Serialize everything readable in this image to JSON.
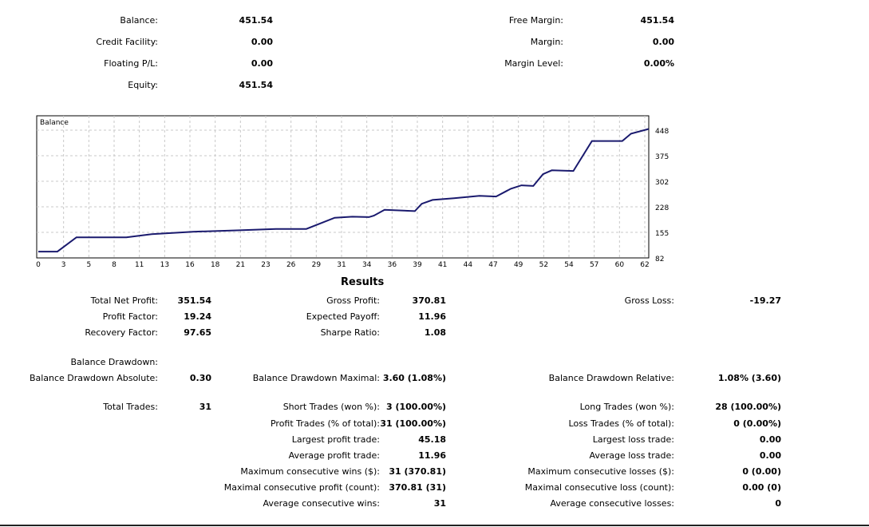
{
  "account": {
    "balance": {
      "label": "Balance:",
      "value": "451.54"
    },
    "credit_facility": {
      "label": "Credit Facility:",
      "value": "0.00"
    },
    "floating_pl": {
      "label": "Floating P/L:",
      "value": "0.00"
    },
    "equity": {
      "label": "Equity:",
      "value": "451.54"
    },
    "free_margin": {
      "label": "Free Margin:",
      "value": "451.54"
    },
    "margin": {
      "label": "Margin:",
      "value": "0.00"
    },
    "margin_level": {
      "label": "Margin Level:",
      "value": "0.00%"
    }
  },
  "chart_data": {
    "type": "line",
    "title": "Balance",
    "line_color": "#1a1a6e",
    "grid": true,
    "x_ticks": [
      "0",
      "3",
      "5",
      "8",
      "11",
      "13",
      "16",
      "18",
      "21",
      "23",
      "26",
      "29",
      "31",
      "34",
      "36",
      "39",
      "41",
      "44",
      "47",
      "49",
      "52",
      "54",
      "57",
      "60",
      "62"
    ],
    "y_ticks": [
      "82",
      "155",
      "228",
      "302",
      "375",
      "448"
    ],
    "ylim": [
      82,
      484
    ],
    "xlim": [
      0,
      63
    ],
    "series": [
      {
        "x": [
          0,
          1.95,
          3.9,
          9.0,
          11.6,
          15.8,
          20.3,
          24.3,
          27.4,
          30.3,
          32.1,
          33.8,
          34.3,
          35.4,
          38.5,
          39.2,
          40.3,
          42.5,
          45.1,
          46.8,
          48.3,
          49.4,
          50.6,
          51.6,
          52.5,
          54.7,
          56.6,
          59.7,
          60.6,
          62.4
        ],
        "y": [
          100,
          100,
          141,
          141,
          150,
          157,
          161,
          165,
          165,
          197,
          200,
          199,
          203,
          220,
          216,
          237,
          248,
          253,
          260,
          258,
          280,
          290,
          288,
          322,
          333,
          331,
          417,
          417,
          438,
          451.54
        ]
      }
    ]
  },
  "results": {
    "title": "Results",
    "total_net_profit": {
      "label": "Total Net Profit:",
      "value": "351.54"
    },
    "profit_factor": {
      "label": "Profit Factor:",
      "value": "19.24"
    },
    "recovery_factor": {
      "label": "Recovery Factor:",
      "value": "97.65"
    },
    "gross_profit": {
      "label": "Gross Profit:",
      "value": "370.81"
    },
    "expected_payoff": {
      "label": "Expected Payoff:",
      "value": "11.96"
    },
    "sharpe_ratio": {
      "label": "Sharpe Ratio:",
      "value": "1.08"
    },
    "gross_loss": {
      "label": "Gross Loss:",
      "value": "-19.27"
    },
    "balance_drawdown": {
      "label": "Balance Drawdown:"
    },
    "bd_absolute": {
      "label": "Balance Drawdown Absolute:",
      "value": "0.30"
    },
    "bd_maximal": {
      "label": "Balance Drawdown Maximal:",
      "value": "3.60 (1.08%)"
    },
    "bd_relative": {
      "label": "Balance Drawdown Relative:",
      "value": "1.08% (3.60)"
    },
    "total_trades": {
      "label": "Total Trades:",
      "value": "31"
    },
    "short_trades": {
      "label": "Short Trades (won %):",
      "value": "3 (100.00%)"
    },
    "long_trades": {
      "label": "Long Trades (won %):",
      "value": "28 (100.00%)"
    },
    "profit_trades": {
      "label": "Profit Trades (% of total):",
      "value": "31 (100.00%)"
    },
    "loss_trades": {
      "label": "Loss Trades (% of total):",
      "value": "0 (0.00%)"
    },
    "largest_profit": {
      "label": "Largest profit trade:",
      "value": "45.18"
    },
    "largest_loss": {
      "label": "Largest loss trade:",
      "value": "0.00"
    },
    "average_profit": {
      "label": "Average profit trade:",
      "value": "11.96"
    },
    "average_loss": {
      "label": "Average loss trade:",
      "value": "0.00"
    },
    "max_consec_wins": {
      "label": "Maximum consecutive wins ($):",
      "value": "31 (370.81)"
    },
    "max_consec_losses": {
      "label": "Maximum consecutive losses ($):",
      "value": "0 (0.00)"
    },
    "maximal_consec_profit": {
      "label": "Maximal consecutive profit (count):",
      "value": "370.81 (31)"
    },
    "maximal_consec_loss": {
      "label": "Maximal consecutive loss (count):",
      "value": "0.00 (0)"
    },
    "avg_consec_wins": {
      "label": "Average consecutive wins:",
      "value": "31"
    },
    "avg_consec_losses": {
      "label": "Average consecutive losses:",
      "value": "0"
    }
  }
}
